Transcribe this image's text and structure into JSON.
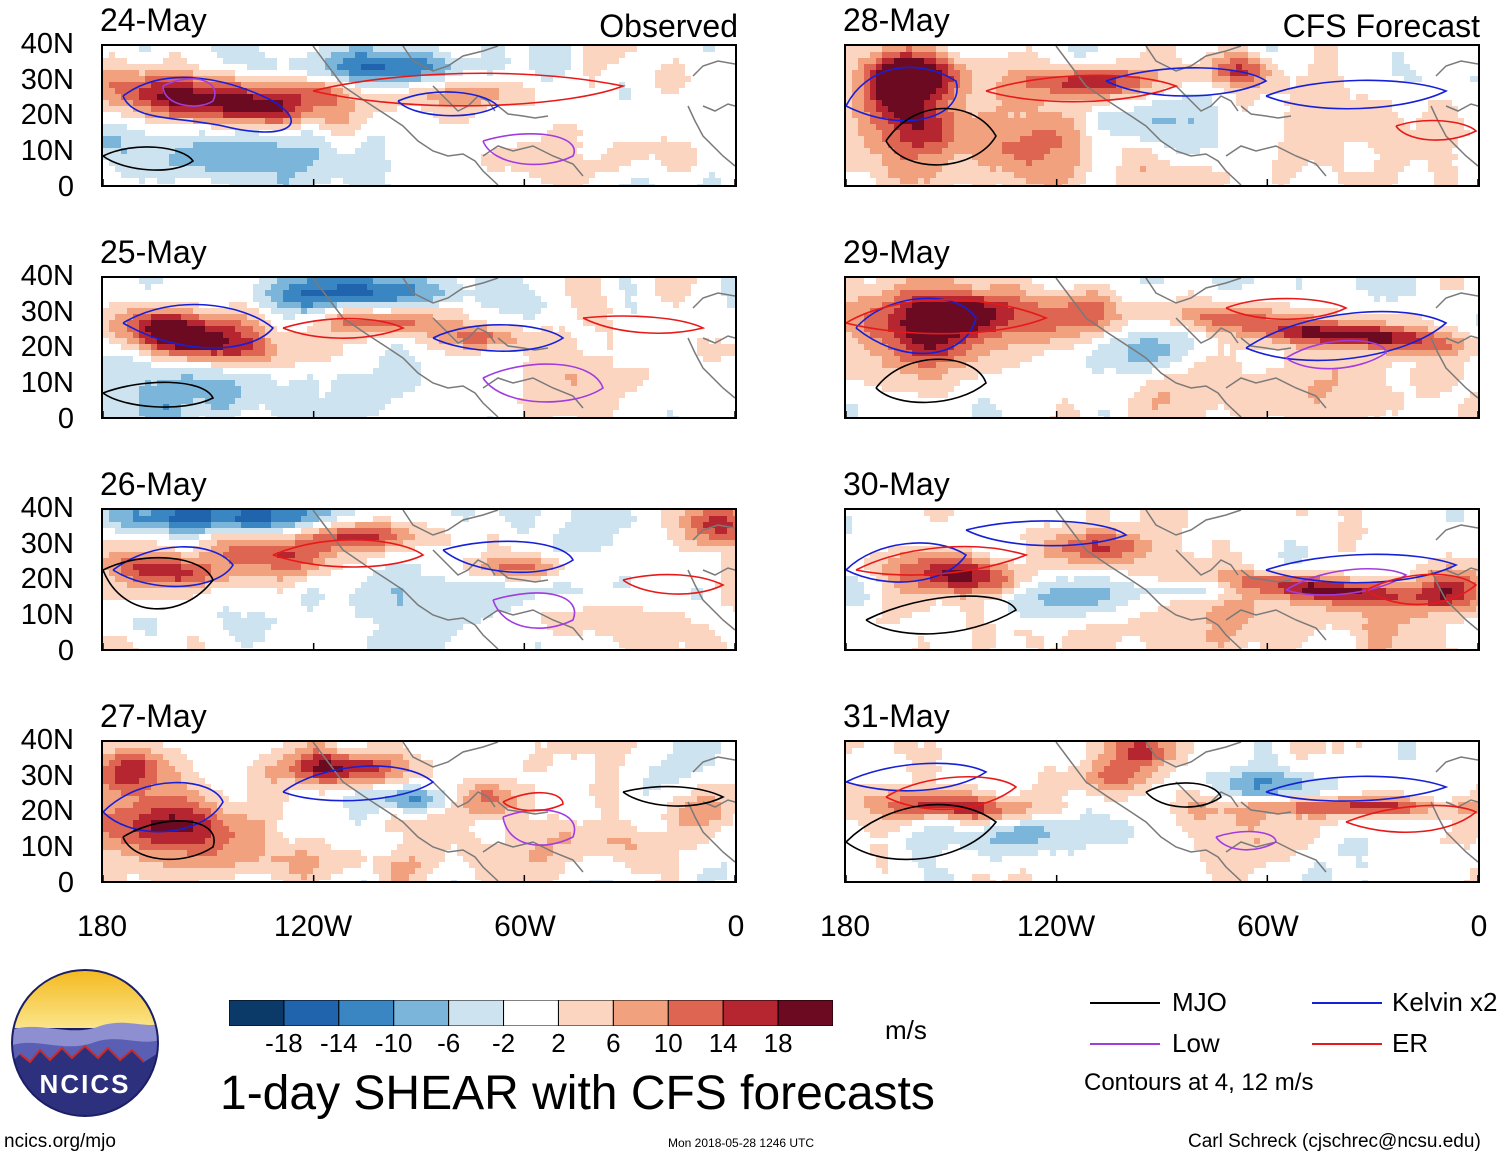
{
  "header": {
    "observed_label": "Observed",
    "forecast_label": "CFS Forecast"
  },
  "panels": [
    {
      "date": "24-May",
      "group": "observed"
    },
    {
      "date": "25-May",
      "group": "observed"
    },
    {
      "date": "26-May",
      "group": "observed"
    },
    {
      "date": "27-May",
      "group": "observed"
    },
    {
      "date": "28-May",
      "group": "forecast"
    },
    {
      "date": "29-May",
      "group": "forecast"
    },
    {
      "date": "30-May",
      "group": "forecast"
    },
    {
      "date": "31-May",
      "group": "forecast"
    }
  ],
  "axes": {
    "lat_labels": [
      "40N",
      "30N",
      "20N",
      "10N",
      "0"
    ],
    "lon_labels": [
      "180",
      "120W",
      "60W",
      "0"
    ]
  },
  "colorbar": {
    "labels": [
      "-18",
      "-14",
      "-10",
      "-6",
      "-2",
      "2",
      "6",
      "10",
      "14",
      "18"
    ],
    "colors": [
      "#0b3a69",
      "#1f64ad",
      "#3a86c2",
      "#7bb5da",
      "#cde3f0",
      "#ffffff",
      "#fcd5c1",
      "#f2a17f",
      "#dd6551",
      "#b52631",
      "#6b0a20"
    ],
    "units": "m/s"
  },
  "title": "1-day SHEAR with CFS forecasts",
  "legend": {
    "items": [
      {
        "label": "MJO",
        "color": "#000000"
      },
      {
        "label": "Kelvin x2",
        "color": "#1520d8"
      },
      {
        "label": "Low",
        "color": "#a03ce0"
      },
      {
        "label": "ER",
        "color": "#e81919"
      }
    ],
    "note": "Contours at 4, 12 m/s"
  },
  "logo": {
    "text": "NCICS"
  },
  "footer": {
    "left": "ncics.org/mjo",
    "center": "Mon 2018-05-28 1246 UTC",
    "right": "Carl Schreck (cjschrec@ncsu.edu)"
  },
  "chart_data": {
    "type": "heatmap",
    "title": "1-day SHEAR with CFS forecasts",
    "variable": "vertical wind shear",
    "units": "m/s",
    "lon_range": [
      -180,
      0
    ],
    "lat_range": [
      0,
      40
    ],
    "x_ticks": [
      "180",
      "120W",
      "60W",
      "0"
    ],
    "y_ticks": [
      "40N",
      "30N",
      "20N",
      "10N",
      "0"
    ],
    "color_levels": [
      -18,
      -14,
      -10,
      -6,
      -2,
      2,
      6,
      10,
      14,
      18
    ],
    "contour_levels": [
      4,
      12
    ],
    "contour_fields": [
      "MJO",
      "Kelvin x2",
      "Low",
      "ER"
    ],
    "panels": [
      "24-May",
      "25-May",
      "26-May",
      "27-May",
      "28-May",
      "29-May",
      "30-May",
      "31-May"
    ],
    "observed_panels": [
      "24-May",
      "25-May",
      "26-May",
      "27-May"
    ],
    "forecast_panels": [
      "28-May",
      "29-May",
      "30-May",
      "31-May"
    ]
  }
}
